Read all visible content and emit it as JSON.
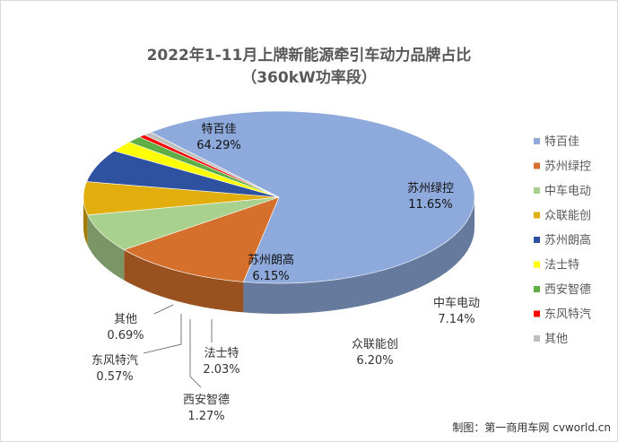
{
  "title": "2022年1-11月上牌新能源牵引车动力品牌占比",
  "subtitle": "（360kW功率段）",
  "credit": "制图：第一商用车网 cvworld.cn",
  "chart_data": {
    "type": "pie",
    "title": "2022年1-11月上牌新能源牵引车动力品牌占比",
    "subtitle": "（360kW功率段）",
    "legend_position": "right",
    "slices": [
      {
        "name": "特百佳",
        "value": 64.29,
        "label": "64.29%",
        "color": "#8EA9DB"
      },
      {
        "name": "苏州绿控",
        "value": 11.65,
        "label": "11.65%",
        "color": "#D4702C"
      },
      {
        "name": "中车电动",
        "value": 7.14,
        "label": "7.14%",
        "color": "#A9D18E"
      },
      {
        "name": "众联能创",
        "value": 6.2,
        "label": "6.20%",
        "color": "#E2AE0E"
      },
      {
        "name": "苏州朗高",
        "value": 6.15,
        "label": "6.15%",
        "color": "#2F52A0"
      },
      {
        "name": "法士特",
        "value": 2.03,
        "label": "2.03%",
        "color": "#FFFF00"
      },
      {
        "name": "西安智德",
        "value": 1.27,
        "label": "1.27%",
        "color": "#5FAE45"
      },
      {
        "name": "东风特汽",
        "value": 0.57,
        "label": "0.57%",
        "color": "#FF0000"
      },
      {
        "name": "其他",
        "value": 0.69,
        "label": "0.69%",
        "color": "#BFBFBF"
      }
    ]
  }
}
